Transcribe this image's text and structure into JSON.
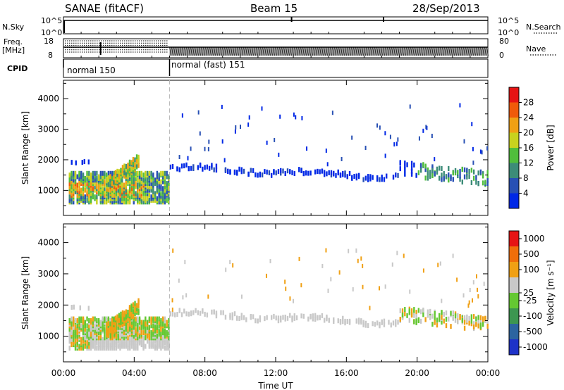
{
  "header": {
    "station": "SANAE (fitACF)",
    "beam": "Beam 15",
    "date": "28/Sep/2013"
  },
  "strips": {
    "nsky_label": "N.Sky",
    "nsky_ticks": [
      "10^5",
      "10^0"
    ],
    "nsearch_label": "N.Search",
    "nsearch_ticks": [
      "10^5",
      "10^0"
    ],
    "freq_label": "Freq.",
    "freq_unit": "[MHz]",
    "freq_ticks": [
      18,
      8
    ],
    "nave_label": "Nave",
    "nave_ticks": [
      80,
      0
    ],
    "cpid_label": "CPID",
    "modes": [
      "normal 150",
      "normal (fast) 151"
    ]
  },
  "chart_data": [
    {
      "type": "heatmap",
      "name": "power",
      "ylabel": "Slant Range [km]",
      "yticks": [
        1000,
        2000,
        3000,
        4000
      ],
      "ylim": [
        180,
        4600
      ],
      "xlim_hours": [
        0,
        24
      ],
      "colorbar_label": "Power [dB]",
      "colorbar_ticks": [
        4,
        8,
        12,
        16,
        20,
        24,
        28
      ],
      "colorscale": [
        "#0028e6",
        "#2850b4",
        "#3c8c78",
        "#50be3c",
        "#c8d21e",
        "#f0a014",
        "#f05a0a",
        "#e61414"
      ]
    },
    {
      "type": "heatmap",
      "name": "velocity",
      "ylabel": "Slant Range [km]",
      "yticks": [
        1000,
        2000,
        3000,
        4000
      ],
      "ylim": [
        180,
        4600
      ],
      "xlim_hours": [
        0,
        24
      ],
      "colorbar_label": "Velocity [m s⁻¹]",
      "colorbar_ticks": [
        "1000",
        "500",
        "100",
        "25",
        "-25",
        "-100",
        "-500",
        "-1000"
      ],
      "colorscale": [
        "#1e32c8",
        "#2c64a0",
        "#3c9650",
        "#64c832",
        "#c8c8c8",
        "#f0a014",
        "#f06e0a",
        "#e61414"
      ]
    }
  ],
  "xaxis": {
    "ticks": [
      "00:00",
      "04:00",
      "08:00",
      "12:00",
      "16:00",
      "20:00",
      "00:00"
    ],
    "label": "Time UT"
  }
}
